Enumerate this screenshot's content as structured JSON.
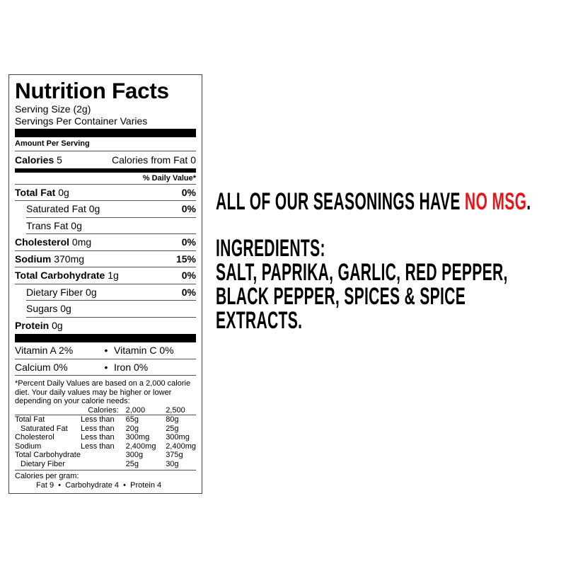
{
  "label": {
    "title": "Nutrition Facts",
    "serving_size": "Serving Size (2g)",
    "servings_per_container": "Servings Per Container Varies",
    "amount_per_serving": "Amount Per Serving",
    "calories_label": "Calories",
    "calories_value": "5",
    "calories_from_fat": "Calories from Fat 0",
    "daily_value_header": "% Daily Value*",
    "nutrients": [
      {
        "name": "Total Fat",
        "amount": "0g",
        "dv": "0%"
      },
      {
        "name": "Saturated Fat",
        "amount": "0g",
        "dv": "0%"
      },
      {
        "name": "Trans Fat",
        "amount": "0g",
        "dv": ""
      },
      {
        "name": "Cholesterol",
        "amount": "0mg",
        "dv": "0%"
      },
      {
        "name": "Sodium",
        "amount": "370mg",
        "dv": "15%"
      },
      {
        "name": "Total Carbohydrate",
        "amount": "1g",
        "dv": "0%"
      },
      {
        "name": "Dietary Fiber",
        "amount": "0g",
        "dv": "0%"
      },
      {
        "name": "Sugars",
        "amount": "0g",
        "dv": ""
      },
      {
        "name": "Protein",
        "amount": "0g",
        "dv": ""
      }
    ],
    "vitamins": [
      [
        "Vitamin A 2%",
        "Vitamin C 0%"
      ],
      [
        "Calcium 0%",
        "Iron 0%"
      ]
    ],
    "bullet": "•",
    "footnote": "*Percent Daily Values are based on a 2,000 calorie diet. Your daily values may be higher or lower depending on your calorie needs:",
    "calories_header": [
      "Calories:",
      "2,000",
      "2,500"
    ],
    "reference": [
      [
        "Total Fat",
        "Less than",
        "65g",
        "80g"
      ],
      [
        "Saturated Fat",
        "Less than",
        "20g",
        "25g"
      ],
      [
        "Cholesterol",
        "Less than",
        "300mg",
        "300mg"
      ],
      [
        "Sodium",
        "Less than",
        "2,400mg",
        "2,400mg"
      ],
      [
        "Total Carbohydrate",
        "",
        "300g",
        "375g"
      ],
      [
        "Dietary Fiber",
        "",
        "25g",
        "30g"
      ]
    ],
    "calories_per_gram": "Calories per gram:",
    "cpg_values": [
      "Fat 9",
      "Carbohydrate 4",
      "Protein 4"
    ]
  },
  "marketing": {
    "line1_prefix": "ALL OF OUR SEASONINGS HAVE ",
    "line1_highlight": "NO MSG",
    "line1_suffix": ".",
    "ingredients_heading": "INGREDIENTS:",
    "ingredients_lines": [
      "SALT, PAPRIKA, GARLIC, RED PEPPER,",
      "BLACK PEPPER, SPICES & SPICE",
      "EXTRACTS."
    ],
    "highlight_color": "#e8161b"
  }
}
